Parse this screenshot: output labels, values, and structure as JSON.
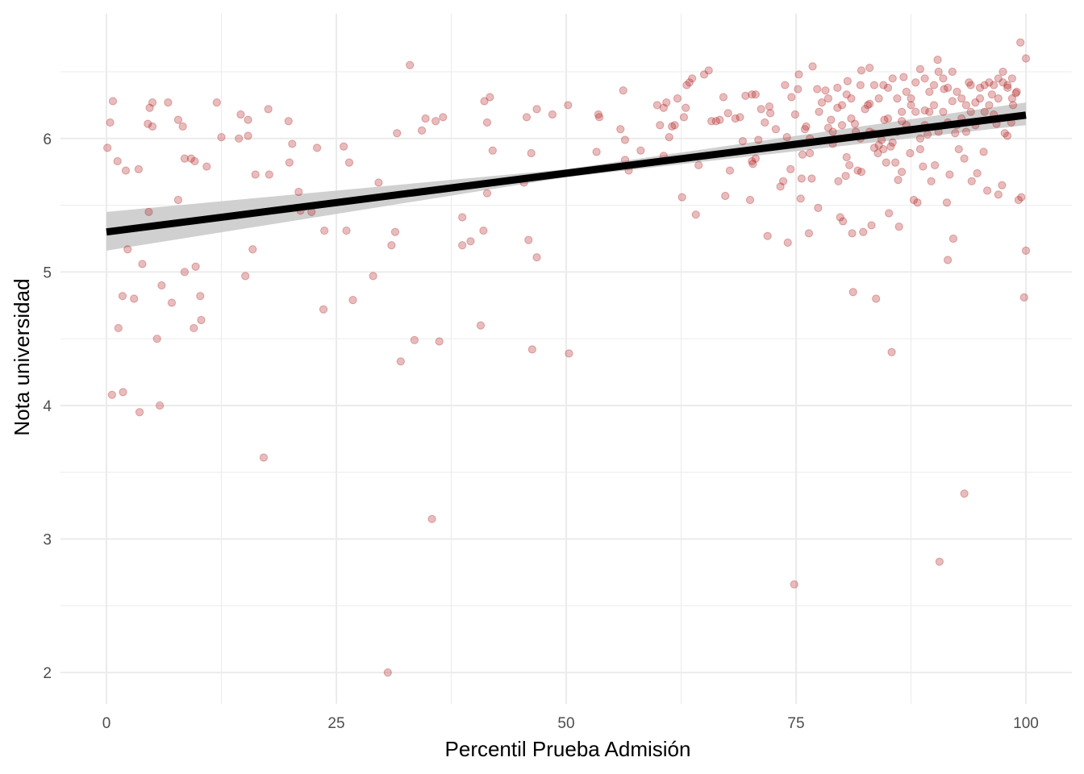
{
  "chart_data": {
    "type": "scatter",
    "title": "",
    "xlabel": "Percentil Prueba Admisión",
    "ylabel": "Nota universidad",
    "xlim": [
      -5,
      105
    ],
    "ylim": [
      1.765,
      6.935
    ],
    "xticks": [
      0,
      25,
      50,
      75,
      100
    ],
    "xtick_labels": [
      "0",
      "25",
      "50",
      "75",
      "100"
    ],
    "yticks": [
      2,
      3,
      4,
      5,
      6
    ],
    "ytick_labels": [
      "2",
      "3",
      "4",
      "5",
      "6"
    ],
    "grid": true,
    "legend": "none",
    "colors": {
      "points": "#b22222",
      "fit_line": "#000000",
      "band": "#c8c8c8",
      "grid_major": "#ebebeb",
      "grid_minor": "#f4f4f4"
    },
    "fit": {
      "method": "lm",
      "x": [
        0,
        50,
        100
      ],
      "y": [
        5.3,
        5.74,
        6.175
      ],
      "ymin": [
        5.16,
        5.71,
        6.1
      ],
      "ymax": [
        5.45,
        5.77,
        6.27
      ]
    },
    "points": [
      [
        0.1,
        5.93
      ],
      [
        0.4,
        6.12
      ],
      [
        0.7,
        6.28
      ],
      [
        1.2,
        5.83
      ],
      [
        2.1,
        5.76
      ],
      [
        3.5,
        5.77
      ],
      [
        0.6,
        4.08
      ],
      [
        1.8,
        4.1
      ],
      [
        1.3,
        4.58
      ],
      [
        1.75,
        4.82
      ],
      [
        3.0,
        4.8
      ],
      [
        2.3,
        5.17
      ],
      [
        3.9,
        5.06
      ],
      [
        3.6,
        3.95
      ],
      [
        4.6,
        5.45
      ],
      [
        4.5,
        6.11
      ],
      [
        4.7,
        6.23
      ],
      [
        5.0,
        6.27
      ],
      [
        5.0,
        6.09
      ],
      [
        5.5,
        4.5
      ],
      [
        5.8,
        4.0
      ],
      [
        6.0,
        4.9
      ],
      [
        6.7,
        6.27
      ],
      [
        7.1,
        4.77
      ],
      [
        7.8,
        6.14
      ],
      [
        7.8,
        5.54
      ],
      [
        8.3,
        6.09
      ],
      [
        8.5,
        5.85
      ],
      [
        8.5,
        5.0
      ],
      [
        9.2,
        5.85
      ],
      [
        9.6,
        5.83
      ],
      [
        9.5,
        4.58
      ],
      [
        9.7,
        5.04
      ],
      [
        10.2,
        4.82
      ],
      [
        10.3,
        4.64
      ],
      [
        10.9,
        5.79
      ],
      [
        12.0,
        6.27
      ],
      [
        12.5,
        6.01
      ],
      [
        14.4,
        6.0
      ],
      [
        14.6,
        6.18
      ],
      [
        15.1,
        4.97
      ],
      [
        15.4,
        6.02
      ],
      [
        15.4,
        6.14
      ],
      [
        15.9,
        5.17
      ],
      [
        16.2,
        5.73
      ],
      [
        17.1,
        3.61
      ],
      [
        17.7,
        5.73
      ],
      [
        17.6,
        6.22
      ],
      [
        19.8,
        6.13
      ],
      [
        19.9,
        5.82
      ],
      [
        20.2,
        5.96
      ],
      [
        20.9,
        5.6
      ],
      [
        21.1,
        5.46
      ],
      [
        22.3,
        5.45
      ],
      [
        22.9,
        5.93
      ],
      [
        23.6,
        4.72
      ],
      [
        23.7,
        5.31
      ],
      [
        25.8,
        5.94
      ],
      [
        26.1,
        5.31
      ],
      [
        26.4,
        5.82
      ],
      [
        26.8,
        4.79
      ],
      [
        29.0,
        4.97
      ],
      [
        29.6,
        5.67
      ],
      [
        30.6,
        2.0
      ],
      [
        31.0,
        5.2
      ],
      [
        31.4,
        5.3
      ],
      [
        31.6,
        6.04
      ],
      [
        32.0,
        4.33
      ],
      [
        33.0,
        6.55
      ],
      [
        33.5,
        4.49
      ],
      [
        34.3,
        6.06
      ],
      [
        34.7,
        6.15
      ],
      [
        35.4,
        3.15
      ],
      [
        35.8,
        6.13
      ],
      [
        36.2,
        4.48
      ],
      [
        36.6,
        6.16
      ],
      [
        38.7,
        5.41
      ],
      [
        38.7,
        5.2
      ],
      [
        39.6,
        5.23
      ],
      [
        40.7,
        4.6
      ],
      [
        41.0,
        5.31
      ],
      [
        41.1,
        6.28
      ],
      [
        41.4,
        6.12
      ],
      [
        41.4,
        5.59
      ],
      [
        41.7,
        6.31
      ],
      [
        42.0,
        5.91
      ],
      [
        45.4,
        5.67
      ],
      [
        45.7,
        6.16
      ],
      [
        45.9,
        5.24
      ],
      [
        46.2,
        5.89
      ],
      [
        46.3,
        4.42
      ],
      [
        46.8,
        6.22
      ],
      [
        46.8,
        5.11
      ],
      [
        48.5,
        6.18
      ],
      [
        50.2,
        6.25
      ],
      [
        50.3,
        4.39
      ],
      [
        53.3,
        5.9
      ],
      [
        53.5,
        6.18
      ],
      [
        53.6,
        6.16
      ],
      [
        55.9,
        6.07
      ],
      [
        56.2,
        6.36
      ],
      [
        56.4,
        5.99
      ],
      [
        56.4,
        5.84
      ],
      [
        56.8,
        5.76
      ],
      [
        58.1,
        5.91
      ],
      [
        59.9,
        6.25
      ],
      [
        60.2,
        6.1
      ],
      [
        60.6,
        6.23
      ],
      [
        60.6,
        5.87
      ],
      [
        60.9,
        6.27
      ],
      [
        61.2,
        6.01
      ],
      [
        61.5,
        6.09
      ],
      [
        61.8,
        6.1
      ],
      [
        62.1,
        6.3
      ],
      [
        62.6,
        5.56
      ],
      [
        62.8,
        6.16
      ],
      [
        63.0,
        6.23
      ],
      [
        63.1,
        6.4
      ],
      [
        63.4,
        6.42
      ],
      [
        63.7,
        6.45
      ],
      [
        64.1,
        5.43
      ],
      [
        64.4,
        5.8
      ],
      [
        65.0,
        6.48
      ],
      [
        65.5,
        6.51
      ],
      [
        65.8,
        6.13
      ],
      [
        66.3,
        6.13
      ],
      [
        66.7,
        6.14
      ],
      [
        67.1,
        6.31
      ],
      [
        67.3,
        5.57
      ],
      [
        67.6,
        6.19
      ],
      [
        67.8,
        5.76
      ],
      [
        68.4,
        6.15
      ],
      [
        68.9,
        6.16
      ],
      [
        69.2,
        5.98
      ],
      [
        69.5,
        6.32
      ],
      [
        70.0,
        5.54
      ],
      [
        70.2,
        5.83
      ],
      [
        70.2,
        6.33
      ],
      [
        70.3,
        5.81
      ],
      [
        70.6,
        6.33
      ],
      [
        70.6,
        5.85
      ],
      [
        70.9,
        5.99
      ],
      [
        71.2,
        6.22
      ],
      [
        71.6,
        6.12
      ],
      [
        71.9,
        5.27
      ],
      [
        72.1,
        6.24
      ],
      [
        72.2,
        6.19
      ],
      [
        72.8,
        6.07
      ],
      [
        73.3,
        5.64
      ],
      [
        73.6,
        5.68
      ],
      [
        73.8,
        6.4
      ],
      [
        74.0,
        6.01
      ],
      [
        74.1,
        5.22
      ],
      [
        74.4,
        5.77
      ],
      [
        74.5,
        6.31
      ],
      [
        74.8,
        2.66
      ],
      [
        74.9,
        6.18
      ],
      [
        75.2,
        6.37
      ],
      [
        75.3,
        6.48
      ],
      [
        75.5,
        5.55
      ],
      [
        75.6,
        5.7
      ],
      [
        75.7,
        5.88
      ],
      [
        75.96,
        6.07
      ],
      [
        76.1,
        6.09
      ],
      [
        76.4,
        5.29
      ],
      [
        76.5,
        5.89
      ],
      [
        76.7,
        5.7
      ],
      [
        76.8,
        6.54
      ],
      [
        77.3,
        6.37
      ],
      [
        77.4,
        5.48
      ],
      [
        77.8,
        6.27
      ],
      [
        78.2,
        6.36
      ],
      [
        78.5,
        6.3
      ],
      [
        78.8,
        6.14
      ],
      [
        79.0,
        5.96
      ],
      [
        79.5,
        6.23
      ],
      [
        79.6,
        5.68
      ],
      [
        79.8,
        5.41
      ],
      [
        80.1,
        5.38
      ],
      [
        80.4,
        5.72
      ],
      [
        80.5,
        5.86
      ],
      [
        80.6,
        6.43
      ],
      [
        80.8,
        5.8
      ],
      [
        81.1,
        5.29
      ],
      [
        81.2,
        4.85
      ],
      [
        81.4,
        6.11
      ],
      [
        81.7,
        5.76
      ],
      [
        82.1,
        5.75
      ],
      [
        82.1,
        6.51
      ],
      [
        82.3,
        5.3
      ],
      [
        82.8,
        6.25
      ],
      [
        83.0,
        6.53
      ],
      [
        83.2,
        5.35
      ],
      [
        83.4,
        6.04
      ],
      [
        83.7,
        4.8
      ],
      [
        83.9,
        5.89
      ],
      [
        84.3,
        5.99
      ],
      [
        84.6,
        6.14
      ],
      [
        84.8,
        5.82
      ],
      [
        85.1,
        5.44
      ],
      [
        85.3,
        5.94
      ],
      [
        85.4,
        4.4
      ],
      [
        85.8,
        5.82
      ],
      [
        86.1,
        5.69
      ],
      [
        86.2,
        5.34
      ],
      [
        86.5,
        5.75
      ],
      [
        86.7,
        6.46
      ],
      [
        87.4,
        5.89
      ],
      [
        87.8,
        5.54
      ],
      [
        88.2,
        5.52
      ],
      [
        88.5,
        5.92
      ],
      [
        88.8,
        5.79
      ],
      [
        89.0,
        6.21
      ],
      [
        89.3,
        6.03
      ],
      [
        89.7,
        5.68
      ],
      [
        90.1,
        5.8
      ],
      [
        90.4,
        6.59
      ],
      [
        90.6,
        2.83
      ],
      [
        91.1,
        6.37
      ],
      [
        91.4,
        5.52
      ],
      [
        91.5,
        5.09
      ],
      [
        91.7,
        5.73
      ],
      [
        92.1,
        5.25
      ],
      [
        92.3,
        6.04
      ],
      [
        92.7,
        5.92
      ],
      [
        93.3,
        3.34
      ],
      [
        93.3,
        5.85
      ],
      [
        93.8,
        6.42
      ],
      [
        94.1,
        5.68
      ],
      [
        94.7,
        5.74
      ],
      [
        95.4,
        5.9
      ],
      [
        95.8,
        5.61
      ],
      [
        96.3,
        6.33
      ],
      [
        96.8,
        6.11
      ],
      [
        97.0,
        5.58
      ],
      [
        97.4,
        5.65
      ],
      [
        97.7,
        6.04
      ],
      [
        97.98,
        6.02
      ],
      [
        98.4,
        6.12
      ],
      [
        98.6,
        6.25
      ],
      [
        98.9,
        6.34
      ],
      [
        99.2,
        5.54
      ],
      [
        99.4,
        6.72
      ],
      [
        99.5,
        5.56
      ],
      [
        99.8,
        4.81
      ],
      [
        100.0,
        5.16
      ],
      [
        100.0,
        6.6
      ],
      [
        80,
        6.25
      ],
      [
        81,
        6.3
      ],
      [
        82,
        6.4
      ],
      [
        83,
        6.26
      ],
      [
        84,
        6.3
      ],
      [
        85,
        6.38
      ],
      [
        86,
        6.3
      ],
      [
        87,
        6.35
      ],
      [
        88,
        6.42
      ],
      [
        89,
        6.45
      ],
      [
        90,
        6.4
      ],
      [
        91,
        6.45
      ],
      [
        92,
        6.5
      ],
      [
        93,
        6.3
      ],
      [
        94,
        6.4
      ],
      [
        95,
        6.38
      ],
      [
        96,
        6.42
      ],
      [
        97,
        6.45
      ],
      [
        98,
        6.4
      ],
      [
        99,
        6.35
      ],
      [
        79,
        6.05
      ],
      [
        80,
        6.1
      ],
      [
        81,
        6.15
      ],
      [
        82,
        6.0
      ],
      [
        83,
        6.05
      ],
      [
        84,
        5.95
      ],
      [
        85,
        6.15
      ],
      [
        86,
        6.05
      ],
      [
        87,
        6.1
      ],
      [
        88,
        6.2
      ],
      [
        89,
        6.1
      ],
      [
        90,
        6.25
      ],
      [
        91,
        6.2
      ],
      [
        92,
        6.28
      ],
      [
        93,
        6.15
      ],
      [
        94,
        6.2
      ],
      [
        95,
        6.3
      ],
      [
        96,
        6.25
      ],
      [
        97,
        6.3
      ],
      [
        98,
        6.38
      ],
      [
        84.5,
        5.92
      ],
      [
        85.5,
        5.97
      ],
      [
        83.5,
        5.93
      ],
      [
        86.5,
        6.2
      ],
      [
        87.5,
        6.3
      ],
      [
        88.5,
        6.0
      ],
      [
        89.5,
        6.35
      ],
      [
        90.5,
        6.05
      ],
      [
        91.5,
        6.12
      ],
      [
        92.5,
        6.35
      ],
      [
        93.5,
        6.05
      ],
      [
        94.5,
        6.1
      ],
      [
        95.5,
        6.2
      ],
      [
        96.5,
        6.4
      ],
      [
        97.5,
        6.5
      ],
      [
        98.5,
        6.45
      ],
      [
        76.5,
        6.0
      ],
      [
        77.5,
        6.2
      ],
      [
        78.5,
        6.08
      ],
      [
        79.5,
        6.38
      ],
      [
        80.5,
        6.33
      ],
      [
        81.5,
        6.05
      ],
      [
        82.5,
        6.22
      ],
      [
        83.5,
        6.4
      ],
      [
        84.5,
        6.4
      ],
      [
        85.5,
        6.45
      ],
      [
        86.5,
        6.13
      ],
      [
        87.5,
        6.25
      ],
      [
        88.5,
        6.52
      ],
      [
        89.5,
        6.2
      ],
      [
        90.5,
        6.5
      ],
      [
        91.5,
        6.38
      ],
      [
        92.5,
        6.1
      ],
      [
        93.5,
        6.25
      ],
      [
        94.5,
        6.27
      ],
      [
        95.5,
        6.4
      ],
      [
        96.5,
        6.18
      ],
      [
        97.5,
        6.42
      ],
      [
        98.5,
        6.3
      ]
    ]
  }
}
